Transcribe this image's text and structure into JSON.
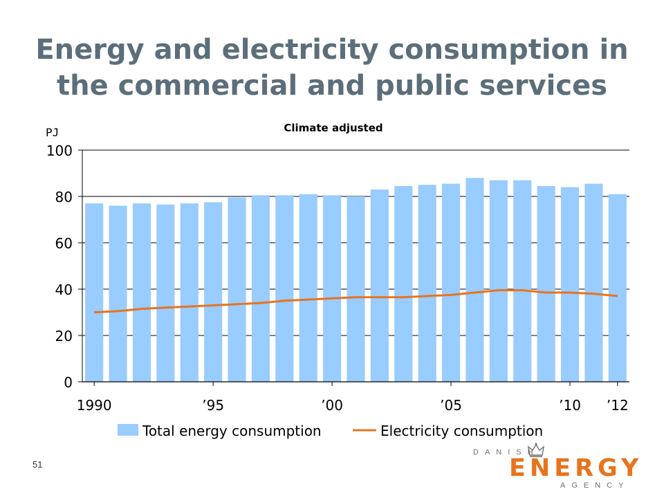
{
  "slide": {
    "title_line1": "Energy and electricity consumption in",
    "title_line2": "the commercial and public services",
    "page_number": "51"
  },
  "logo": {
    "top": "DANISH",
    "main": "ENERGY",
    "bottom": "AGENCY"
  },
  "colors": {
    "title": "#5b6e7a",
    "bars": "#99ccff",
    "line": "#e8731c"
  },
  "chart_data": {
    "type": "bar",
    "title": "Climate adjusted",
    "ylabel": "PJ",
    "xlabel": "",
    "ylim": [
      0,
      100
    ],
    "yticks": [
      0,
      20,
      40,
      60,
      80,
      100
    ],
    "grid": "horizontal",
    "legend_position": "bottom",
    "categories": [
      "1990",
      "1991",
      "1992",
      "1993",
      "1994",
      "1995",
      "1996",
      "1997",
      "1998",
      "1999",
      "2000",
      "2001",
      "2002",
      "2003",
      "2004",
      "2005",
      "2006",
      "2007",
      "2008",
      "2009",
      "2010",
      "2011",
      "2012"
    ],
    "tick_labels": [
      {
        "category": "1990",
        "text": "1990"
      },
      {
        "category": "1995",
        "text": "’95"
      },
      {
        "category": "2000",
        "text": "’00"
      },
      {
        "category": "2005",
        "text": "’05"
      },
      {
        "category": "2010",
        "text": "’10"
      },
      {
        "category": "2012",
        "text": "’12"
      }
    ],
    "series": [
      {
        "name": "Total energy consumption",
        "type": "bar",
        "values": [
          77,
          76,
          77,
          76.5,
          77,
          77.5,
          79.5,
          80.5,
          80.5,
          81,
          80.5,
          80,
          83,
          84.5,
          85,
          85.5,
          88,
          87,
          87,
          84.5,
          84,
          85.5,
          81
        ]
      },
      {
        "name": "Electricity consumption",
        "type": "line",
        "values": [
          30,
          30.5,
          31.5,
          32,
          32.5,
          33,
          33.5,
          34,
          35,
          35.5,
          36,
          36.5,
          36.5,
          36.5,
          37,
          37.5,
          38.5,
          39.5,
          39.5,
          38.5,
          38.5,
          38,
          37
        ]
      }
    ]
  }
}
